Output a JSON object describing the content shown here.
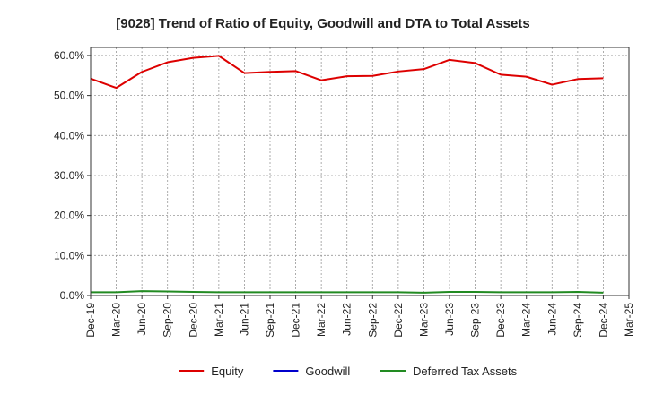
{
  "chart_data": {
    "type": "line",
    "title": "[9028]  Trend of Ratio of Equity, Goodwill and DTA to Total Assets",
    "xlabel": "",
    "ylabel": "",
    "categories": [
      "Dec-19",
      "Mar-20",
      "Jun-20",
      "Sep-20",
      "Dec-20",
      "Mar-21",
      "Jun-21",
      "Sep-21",
      "Dec-21",
      "Mar-22",
      "Jun-22",
      "Sep-22",
      "Dec-22",
      "Mar-23",
      "Jun-23",
      "Sep-23",
      "Dec-23",
      "Mar-24",
      "Jun-24",
      "Sep-24",
      "Dec-24",
      "Mar-25"
    ],
    "x_tick_labels": [
      "Dec-19",
      "Mar-20",
      "Jun-20",
      "Sep-20",
      "Dec-20",
      "Mar-21",
      "Jun-21",
      "Sep-21",
      "Dec-21",
      "Mar-22",
      "Jun-22",
      "Sep-22",
      "Dec-22",
      "Mar-23",
      "Jun-23",
      "Sep-23",
      "Dec-23",
      "Mar-24",
      "Jun-24",
      "Sep-24",
      "Dec-24",
      "Mar-25"
    ],
    "y_tick_labels": [
      "0.0%",
      "10.0%",
      "20.0%",
      "30.0%",
      "40.0%",
      "50.0%",
      "60.0%"
    ],
    "y_ticks": [
      0,
      10,
      20,
      30,
      40,
      50,
      60
    ],
    "ylim": [
      0,
      62
    ],
    "grid": true,
    "legend_position": "bottom",
    "series": [
      {
        "name": "Equity",
        "color": "#dd0000",
        "values": [
          54.2,
          51.9,
          55.9,
          58.3,
          59.4,
          59.9,
          55.6,
          55.9,
          56.1,
          53.8,
          54.8,
          54.9,
          56.0,
          56.6,
          58.9,
          58.1,
          55.2,
          54.7,
          52.7,
          54.1,
          54.3,
          null
        ]
      },
      {
        "name": "Goodwill",
        "color": "#0000cc",
        "values": [
          null,
          null,
          null,
          null,
          null,
          null,
          null,
          null,
          null,
          null,
          null,
          null,
          null,
          null,
          null,
          null,
          null,
          null,
          null,
          null,
          null,
          null
        ]
      },
      {
        "name": "Deferred Tax Assets",
        "color": "#228b22",
        "values": [
          0.8,
          0.8,
          1.1,
          1.0,
          0.9,
          0.8,
          0.8,
          0.8,
          0.8,
          0.8,
          0.8,
          0.8,
          0.8,
          0.7,
          0.9,
          0.9,
          0.8,
          0.8,
          0.8,
          0.9,
          0.7,
          null
        ]
      }
    ]
  }
}
